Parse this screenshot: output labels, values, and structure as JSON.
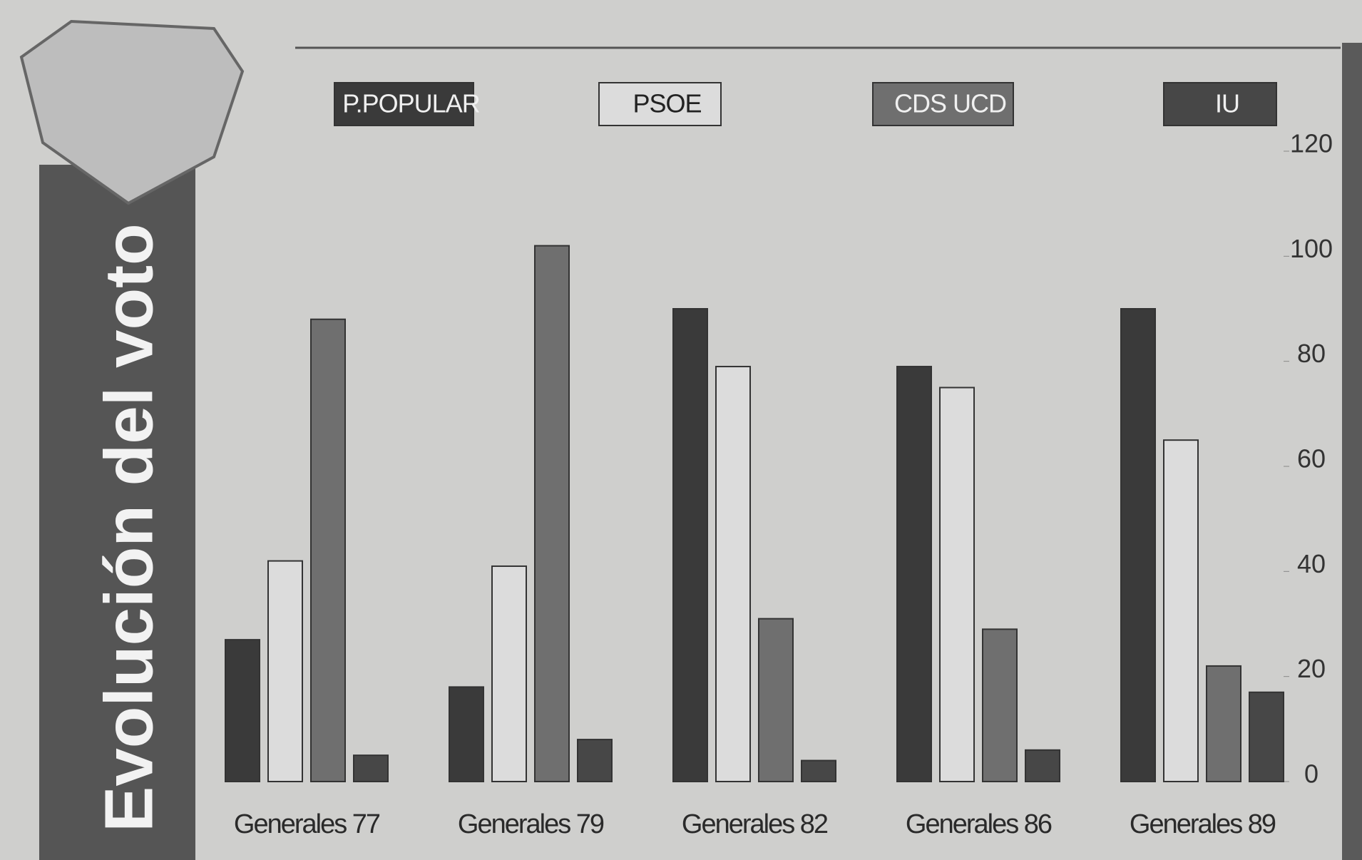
{
  "chart_data": {
    "type": "bar",
    "title": "Evolución del voto",
    "categories": [
      "Generales 77",
      "Generales 79",
      "Generales 82",
      "Generales 86",
      "Generales 89"
    ],
    "series": [
      {
        "name": "P.POPULAR",
        "color": "#3a3a3a",
        "values": [
          27,
          18,
          90,
          79,
          90
        ]
      },
      {
        "name": "PSOE",
        "color": "#dcdcdc",
        "values": [
          42,
          41,
          79,
          75,
          65
        ]
      },
      {
        "name": "CDS UCD",
        "color": "#6f6f6f",
        "values": [
          88,
          102,
          31,
          29,
          22
        ]
      },
      {
        "name": "IU",
        "color": "#474747",
        "values": [
          5,
          8,
          4,
          6,
          17
        ]
      }
    ],
    "ylim": [
      0,
      120
    ],
    "yticks": [
      0,
      20,
      40,
      60,
      80,
      100,
      120
    ],
    "grid": false,
    "legend": "top"
  }
}
